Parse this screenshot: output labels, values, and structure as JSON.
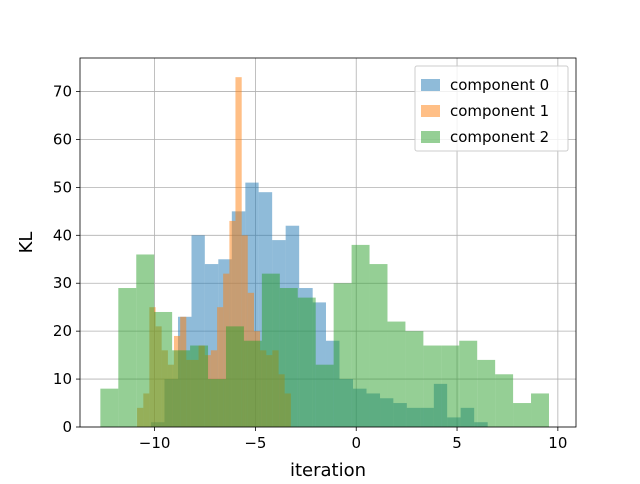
{
  "chart_data": {
    "type": "bar",
    "subtype": "overlapping-histogram",
    "title": "",
    "xlabel": "iteration",
    "ylabel": "KL",
    "xlim": [
      -13.7,
      10.9
    ],
    "ylim": [
      0,
      77
    ],
    "xticks": [
      -10,
      -5,
      0,
      5,
      10
    ],
    "yticks": [
      0,
      10,
      20,
      30,
      40,
      50,
      60,
      70
    ],
    "xtick_labels": [
      "−10",
      "−5",
      "0",
      "5",
      "10"
    ],
    "ytick_labels": [
      "0",
      "10",
      "20",
      "30",
      "40",
      "50",
      "60",
      "70"
    ],
    "grid": true,
    "bar_alpha": 0.5,
    "legend": {
      "placement": "top-right",
      "entries": [
        "component 0",
        "component 1",
        "component 2"
      ]
    },
    "series": [
      {
        "name": "component 0",
        "color": "#1f77b4",
        "bin_edges": [
          -10.18,
          -9.51,
          -8.84,
          -8.17,
          -7.51,
          -6.84,
          -6.17,
          -5.5,
          -4.84,
          -4.17,
          -3.5,
          -2.83,
          -2.16,
          -1.5,
          -0.83,
          -0.16,
          0.51,
          1.18,
          1.84,
          2.51,
          3.18,
          3.85,
          4.51,
          5.18,
          5.85,
          6.52
        ],
        "values": [
          1,
          10,
          23,
          40,
          34,
          35,
          45,
          51,
          49,
          39,
          42,
          29,
          26,
          18,
          10,
          8,
          7,
          6,
          5,
          4,
          4,
          9,
          2,
          4,
          1
        ]
      },
      {
        "name": "component 1",
        "color": "#ff7f0e",
        "bin_edges": [
          -10.87,
          -10.56,
          -10.26,
          -9.95,
          -9.65,
          -9.34,
          -9.04,
          -8.73,
          -8.43,
          -8.12,
          -7.82,
          -7.51,
          -7.21,
          -6.9,
          -6.6,
          -6.29,
          -5.99,
          -5.68,
          -5.38,
          -5.07,
          -4.77,
          -4.46,
          -4.16,
          -3.85,
          -3.55,
          -3.24
        ],
        "values": [
          4,
          7,
          25,
          21,
          16,
          13,
          19,
          23,
          14,
          14,
          17,
          15,
          16,
          25,
          32,
          43,
          73,
          40,
          28,
          20,
          16,
          15,
          16,
          11,
          7
        ]
      },
      {
        "name": "component 2",
        "color": "#2ca02c",
        "bin_edges": [
          -12.69,
          -11.8,
          -10.91,
          -10.02,
          -9.13,
          -8.24,
          -7.35,
          -6.46,
          -5.57,
          -4.68,
          -3.79,
          -2.9,
          -2.01,
          -1.12,
          -0.23,
          0.66,
          1.55,
          2.44,
          3.33,
          4.22,
          5.11,
          6.0,
          6.89,
          7.78,
          8.67,
          9.56
        ],
        "values": [
          8,
          29,
          36,
          24,
          16,
          17,
          10,
          21,
          18,
          32,
          29,
          27,
          13,
          30,
          38,
          34,
          22,
          20,
          17,
          17,
          18,
          14,
          11,
          5,
          7
        ]
      }
    ]
  }
}
